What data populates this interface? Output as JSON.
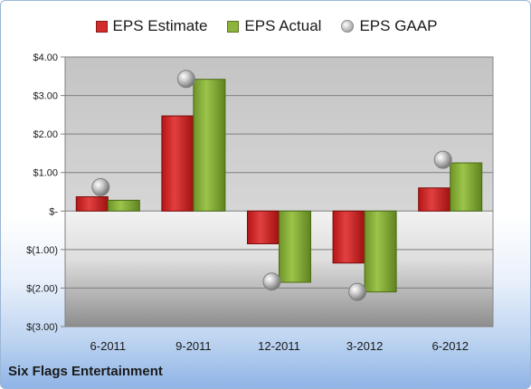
{
  "chart_data": {
    "type": "bar",
    "title": "",
    "xlabel": "",
    "ylabel": "",
    "categories": [
      "6-2011",
      "9-2011",
      "12-2011",
      "3-2012",
      "6-2012"
    ],
    "series": [
      {
        "name": "EPS Estimate",
        "kind": "bar",
        "color": "#d42a2a",
        "values": [
          0.37,
          2.47,
          -0.85,
          -1.35,
          0.6
        ]
      },
      {
        "name": "EPS Actual",
        "kind": "bar",
        "color": "#8cb43c",
        "values": [
          0.28,
          3.42,
          -1.85,
          -2.1,
          1.25
        ]
      },
      {
        "name": "EPS GAAP",
        "kind": "point",
        "color": "#b4b4b4",
        "values": [
          0.62,
          3.43,
          -1.83,
          -2.1,
          1.33
        ]
      }
    ],
    "ylim": [
      -3,
      4
    ],
    "yticks": [
      4,
      3,
      2,
      1,
      0,
      -1,
      -2,
      -3
    ],
    "ytick_labels": [
      "$4.00",
      "$3.00",
      "$2.00",
      "$1.00",
      "$-",
      "$(1.00)",
      "$(2.00)",
      "$(3.00)"
    ],
    "grid": true,
    "legend_position": "top"
  },
  "footer": {
    "company": "Six Flags Entertainment"
  }
}
